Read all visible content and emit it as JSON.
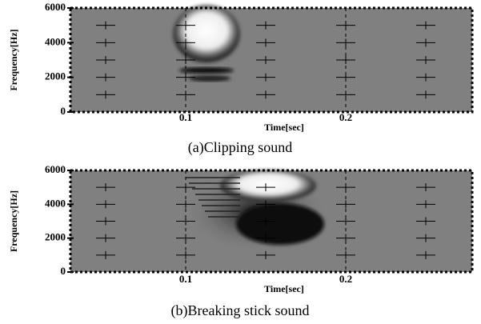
{
  "chart_data": [
    {
      "type": "spectrogram",
      "caption": "(a)Clipping sound",
      "x_label": "Time[sec]",
      "y_label": "Frequency[Hz]",
      "xlim": [
        0.028,
        0.279
      ],
      "xticks": [
        0.1,
        0.2
      ],
      "ylim": [
        0,
        6000
      ],
      "yticks": [
        0,
        2000,
        4000,
        6000
      ],
      "grid": true
    },
    {
      "type": "spectrogram",
      "caption": "(b)Breaking stick sound",
      "x_label": "Time[sec]",
      "y_label": "Frequency[Hz]",
      "xlim": [
        0.028,
        0.279
      ],
      "xticks": [
        0.1,
        0.2
      ],
      "ylim": [
        0,
        6000
      ],
      "yticks": [
        0,
        2000,
        4000,
        6000
      ],
      "grid": true
    }
  ]
}
